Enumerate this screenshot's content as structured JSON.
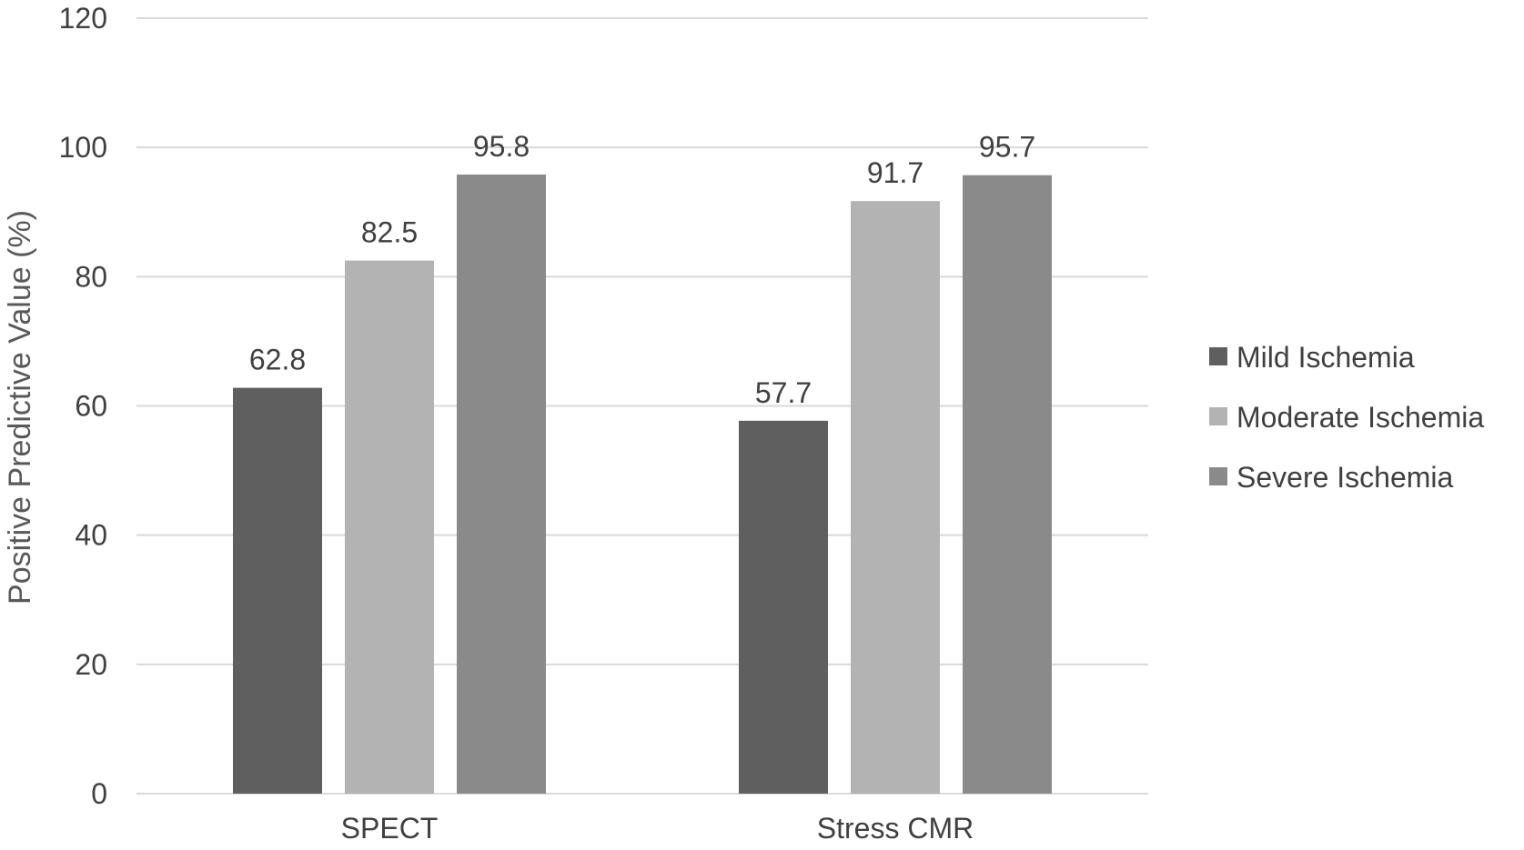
{
  "chart_data": {
    "type": "bar",
    "categories": [
      "SPECT",
      "Stress CMR"
    ],
    "series": [
      {
        "name": "Mild Ischemia",
        "values": [
          62.8,
          57.7
        ],
        "color": "#5f5f5f"
      },
      {
        "name": "Moderate Ischemia",
        "values": [
          82.5,
          91.7
        ],
        "color": "#b3b3b3"
      },
      {
        "name": "Severe Ischemia",
        "values": [
          95.8,
          95.7
        ],
        "color": "#8a8a8a"
      }
    ],
    "data_labels": [
      [
        "62.8",
        "57.7"
      ],
      [
        "82.5",
        "91.7"
      ],
      [
        "95.8",
        "95.7"
      ]
    ],
    "ylabel": "Positive Predictive Value (%)",
    "xlabel": "",
    "ylim": [
      0,
      120
    ],
    "yticks": [
      0,
      20,
      40,
      60,
      80,
      100,
      120
    ],
    "grid": true,
    "legend": "right",
    "gridline_color": "#d9d9d9"
  }
}
